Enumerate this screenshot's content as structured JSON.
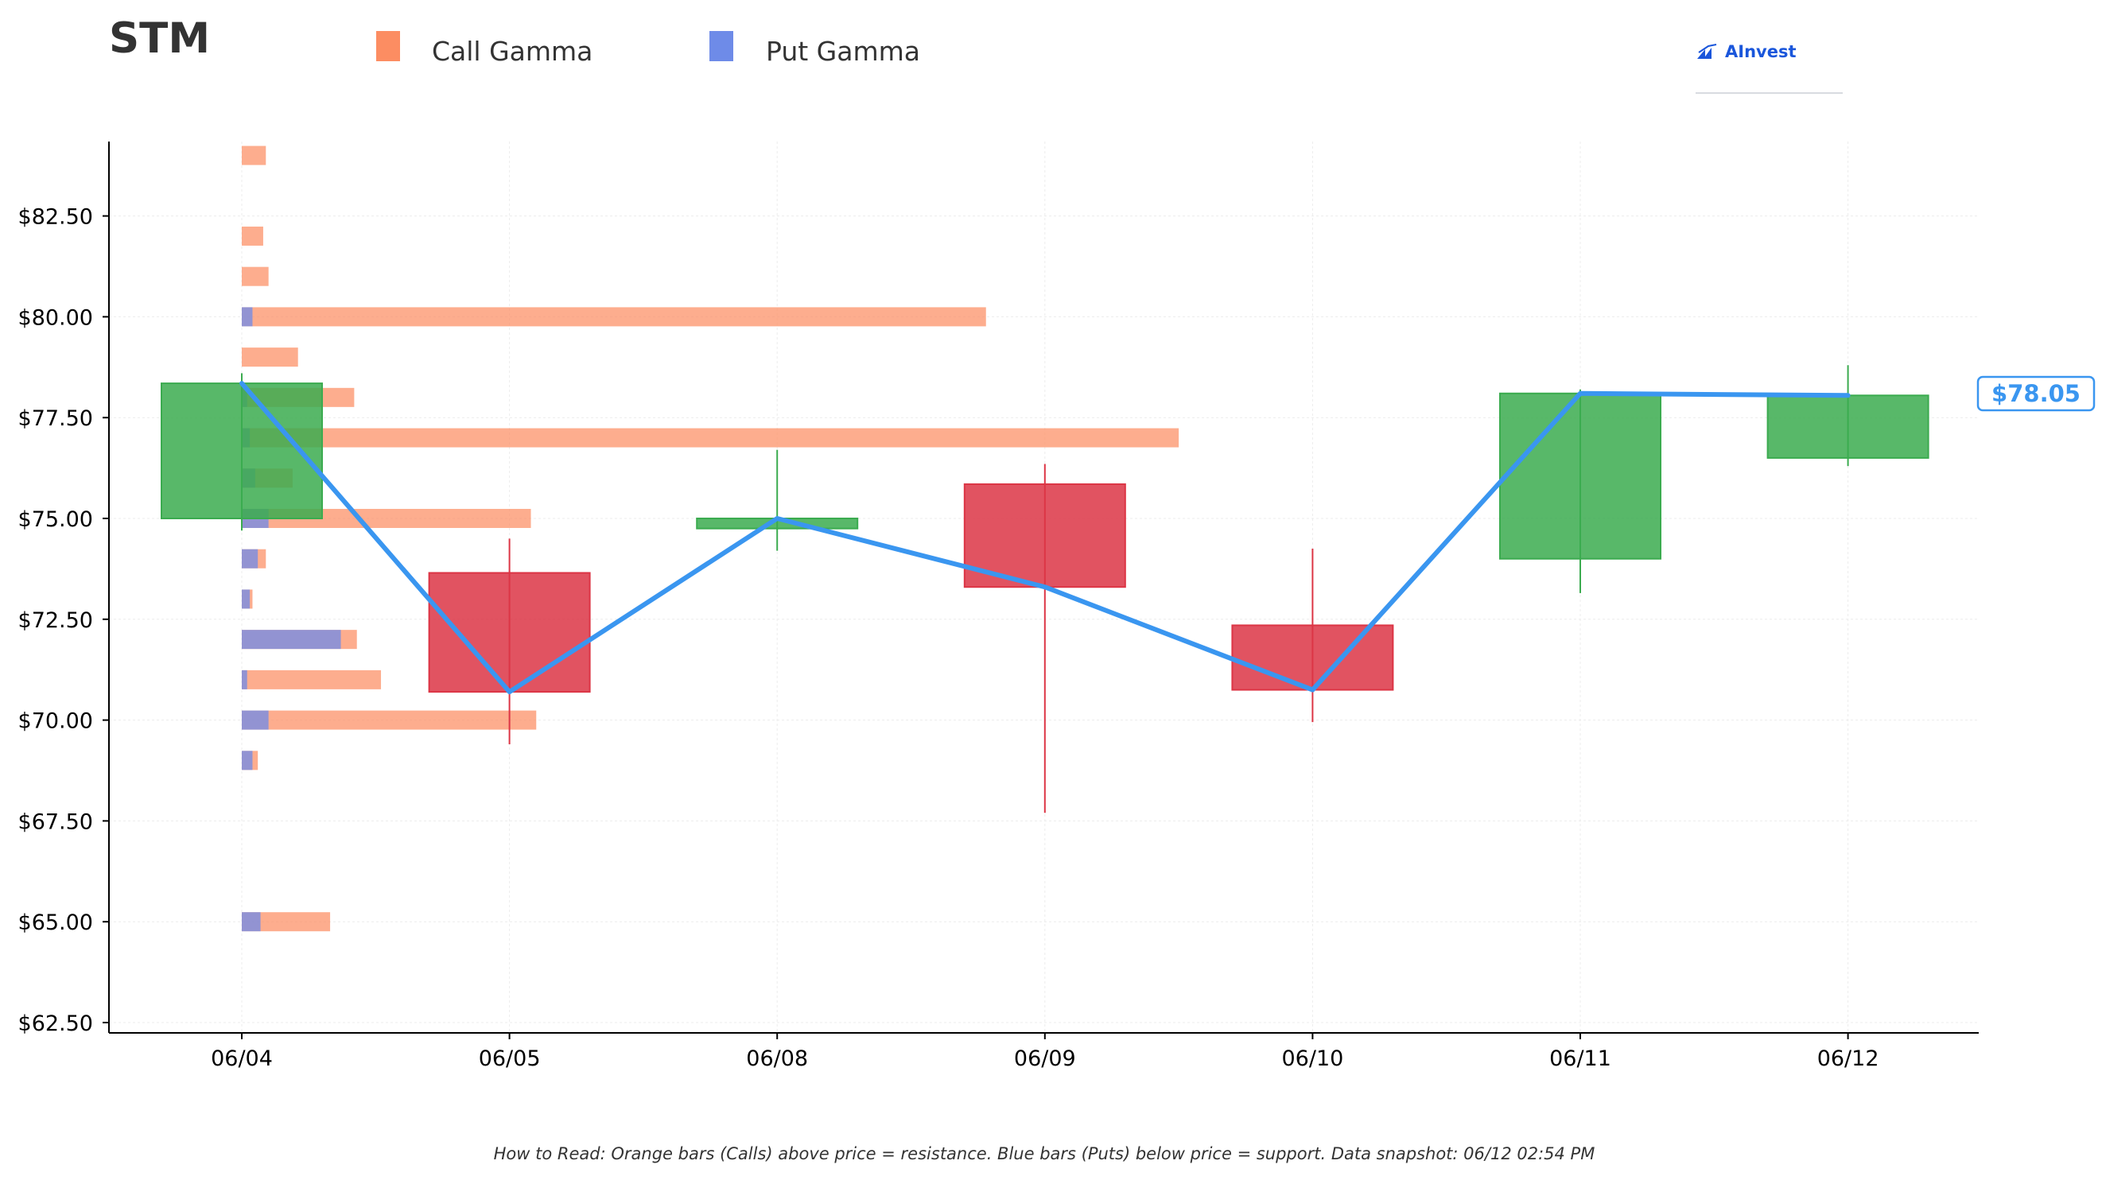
{
  "ticker": "STM",
  "legend": [
    {
      "name": "Call Gamma",
      "color": "#fc8d62"
    },
    {
      "name": "Put Gamma",
      "color": "#6e8be8"
    }
  ],
  "brand": "AInvest",
  "current_price_label": "$78.05",
  "footer": "How to Read: Orange bars (Calls) above price = resistance. Blue bars (Puts) below price = support. Data snapshot: 06/12 02:54 PM",
  "colors": {
    "up": "#3bab4f",
    "down": "#dc3545",
    "price_line": "#3a96f0",
    "call": "#fc8d62",
    "put": "#6e8be8",
    "axis": "#000000",
    "grid": "#ececec"
  },
  "chart_data": {
    "type": "candlestick",
    "title": "STM",
    "categories": [
      "06/04",
      "06/05",
      "06/08",
      "06/09",
      "06/10",
      "06/11",
      "06/12"
    ],
    "ylim": [
      62,
      84.2
    ],
    "yticks": [
      62.5,
      65.0,
      67.5,
      70.0,
      72.5,
      75.0,
      77.5,
      80.0,
      82.5
    ],
    "ytick_labels": [
      "$62.50",
      "$65.00",
      "$67.50",
      "$70.00",
      "$72.50",
      "$75.00",
      "$77.50",
      "$80.00",
      "$82.50"
    ],
    "grid": true,
    "candles": [
      {
        "date": "06/04",
        "open": 75.0,
        "high": 78.6,
        "low": 74.7,
        "close": 78.35
      },
      {
        "date": "06/05",
        "open": 73.65,
        "high": 74.5,
        "low": 69.4,
        "close": 70.7
      },
      {
        "date": "06/08",
        "open": 74.75,
        "high": 76.7,
        "low": 74.2,
        "close": 75.0
      },
      {
        "date": "06/09",
        "open": 75.85,
        "high": 76.35,
        "low": 67.7,
        "close": 73.3
      },
      {
        "date": "06/10",
        "open": 72.35,
        "high": 74.25,
        "low": 69.95,
        "close": 70.75
      },
      {
        "date": "06/11",
        "open": 74.0,
        "high": 78.2,
        "low": 73.15,
        "close": 78.1
      },
      {
        "date": "06/12",
        "open": 76.5,
        "high": 78.8,
        "low": 76.3,
        "close": 78.05
      }
    ],
    "price_line": [
      78.35,
      70.7,
      75.0,
      73.3,
      70.75,
      78.1,
      78.05
    ],
    "gamma_strikes": [
      84,
      82,
      81,
      80,
      79,
      78,
      77,
      76,
      75,
      74,
      73,
      72,
      71,
      70,
      69,
      65
    ],
    "call_gamma": [
      0.09,
      0.08,
      0.1,
      2.78,
      0.21,
      0.42,
      3.5,
      0.19,
      1.08,
      0.09,
      0.04,
      0.43,
      0.52,
      1.1,
      0.06,
      0.33
    ],
    "put_gamma": [
      0,
      0,
      0,
      0.04,
      0,
      0.02,
      0.03,
      0.05,
      0.1,
      0.06,
      0.03,
      0.37,
      0.02,
      0.1,
      0.04,
      0.07
    ],
    "current_price": 78.05
  }
}
